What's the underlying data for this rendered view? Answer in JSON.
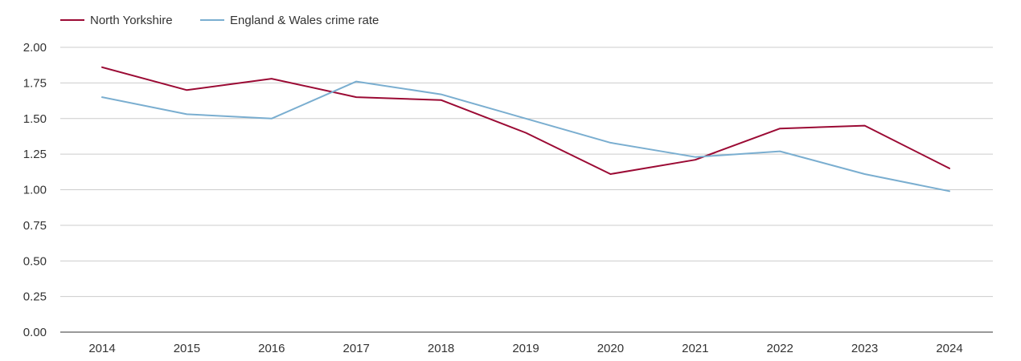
{
  "chart_data": {
    "type": "line",
    "title": "",
    "xlabel": "",
    "ylabel": "",
    "categories": [
      "2014",
      "2015",
      "2016",
      "2017",
      "2018",
      "2019",
      "2020",
      "2021",
      "2022",
      "2023",
      "2024"
    ],
    "ylim": [
      0,
      2.0
    ],
    "yticks": [
      "0.00",
      "0.25",
      "0.50",
      "0.75",
      "1.00",
      "1.25",
      "1.50",
      "1.75",
      "2.00"
    ],
    "grid": true,
    "legend_position": "top-left",
    "series": [
      {
        "name": "North Yorkshire",
        "color": "#9b0a34",
        "values": [
          1.86,
          1.7,
          1.78,
          1.65,
          1.63,
          1.4,
          1.11,
          1.21,
          1.43,
          1.45,
          1.15
        ]
      },
      {
        "name": "England & Wales crime rate",
        "color": "#7aaed0",
        "values": [
          1.65,
          1.53,
          1.5,
          1.76,
          1.67,
          1.5,
          1.33,
          1.23,
          1.27,
          1.11,
          0.99
        ]
      }
    ]
  }
}
